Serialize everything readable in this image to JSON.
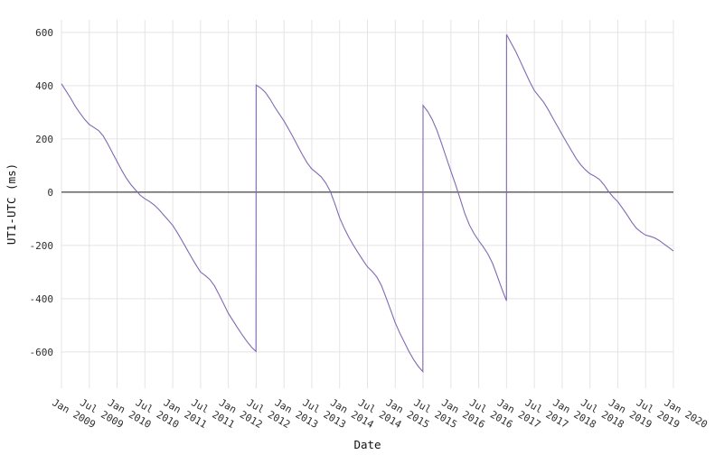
{
  "figure": {
    "background": "#ffffff"
  },
  "chart_data": {
    "type": "line",
    "title": "",
    "xlabel": "Date",
    "ylabel": "UT1-UTC (ms)",
    "legend": null,
    "grid": true,
    "grid_color": "#e4e4e4",
    "zero_line_color": "#1a1a1a",
    "line_color": "#8169b2",
    "tick_color": "#2e2e2e",
    "xlim": [
      2009.0,
      2020.0
    ],
    "ylim": [
      -736,
      647
    ],
    "x_tick_labels": [
      "Jan 2009",
      "Jul 2009",
      "Jan 2010",
      "Jul 2010",
      "Jan 2011",
      "Jul 2011",
      "Jan 2012",
      "Jul 2012",
      "Jan 2013",
      "Jul 2013",
      "Jan 2014",
      "Jul 2014",
      "Jan 2015",
      "Jul 2015",
      "Jan 2016",
      "Jul 2016",
      "Jan 2017",
      "Jul 2017",
      "Jan 2018",
      "Jul 2018",
      "Jan 2019",
      "Jul 2019",
      "Jan 2020"
    ],
    "x_tick_values": [
      2009.0,
      2009.5,
      2010.0,
      2010.5,
      2011.0,
      2011.5,
      2012.0,
      2012.5,
      2013.0,
      2013.5,
      2014.0,
      2014.5,
      2015.0,
      2015.5,
      2016.0,
      2016.5,
      2017.0,
      2017.5,
      2018.0,
      2018.5,
      2019.0,
      2019.5,
      2020.0
    ],
    "y_tick_values": [
      -600,
      -400,
      -200,
      0,
      200,
      400,
      600
    ],
    "series": [
      {
        "name": "UT1-UTC (ms)",
        "points": [
          [
            2009.0,
            407
          ],
          [
            2009.083,
            380
          ],
          [
            2009.167,
            352
          ],
          [
            2009.25,
            322
          ],
          [
            2009.333,
            297
          ],
          [
            2009.417,
            273
          ],
          [
            2009.5,
            254
          ],
          [
            2009.583,
            243
          ],
          [
            2009.667,
            231
          ],
          [
            2009.75,
            211
          ],
          [
            2009.833,
            181
          ],
          [
            2009.917,
            148
          ],
          [
            2010.0,
            115
          ],
          [
            2010.083,
            82
          ],
          [
            2010.167,
            52
          ],
          [
            2010.25,
            28
          ],
          [
            2010.333,
            8
          ],
          [
            2010.417,
            -12
          ],
          [
            2010.5,
            -25
          ],
          [
            2010.583,
            -35
          ],
          [
            2010.667,
            -48
          ],
          [
            2010.75,
            -65
          ],
          [
            2010.833,
            -85
          ],
          [
            2010.917,
            -105
          ],
          [
            2011.0,
            -125
          ],
          [
            2011.083,
            -152
          ],
          [
            2011.167,
            -182
          ],
          [
            2011.25,
            -213
          ],
          [
            2011.333,
            -243
          ],
          [
            2011.417,
            -273
          ],
          [
            2011.5,
            -300
          ],
          [
            2011.583,
            -313
          ],
          [
            2011.667,
            -328
          ],
          [
            2011.75,
            -352
          ],
          [
            2011.833,
            -385
          ],
          [
            2011.917,
            -420
          ],
          [
            2012.0,
            -455
          ],
          [
            2012.083,
            -482
          ],
          [
            2012.167,
            -510
          ],
          [
            2012.25,
            -536
          ],
          [
            2012.333,
            -560
          ],
          [
            2012.417,
            -582
          ],
          [
            2012.496,
            -598
          ],
          [
            2012.5,
            402
          ],
          [
            2012.583,
            391
          ],
          [
            2012.667,
            374
          ],
          [
            2012.75,
            349
          ],
          [
            2012.833,
            320
          ],
          [
            2012.917,
            293
          ],
          [
            2013.0,
            267
          ],
          [
            2013.083,
            237
          ],
          [
            2013.167,
            205
          ],
          [
            2013.25,
            172
          ],
          [
            2013.333,
            140
          ],
          [
            2013.417,
            110
          ],
          [
            2013.5,
            87
          ],
          [
            2013.583,
            73
          ],
          [
            2013.667,
            58
          ],
          [
            2013.75,
            35
          ],
          [
            2013.833,
            3
          ],
          [
            2013.917,
            -45
          ],
          [
            2014.0,
            -96
          ],
          [
            2014.083,
            -135
          ],
          [
            2014.167,
            -170
          ],
          [
            2014.25,
            -200
          ],
          [
            2014.333,
            -228
          ],
          [
            2014.417,
            -255
          ],
          [
            2014.5,
            -280
          ],
          [
            2014.583,
            -297
          ],
          [
            2014.667,
            -318
          ],
          [
            2014.75,
            -350
          ],
          [
            2014.833,
            -395
          ],
          [
            2014.917,
            -443
          ],
          [
            2015.0,
            -491
          ],
          [
            2015.083,
            -530
          ],
          [
            2015.167,
            -565
          ],
          [
            2015.25,
            -600
          ],
          [
            2015.333,
            -630
          ],
          [
            2015.417,
            -655
          ],
          [
            2015.496,
            -674
          ],
          [
            2015.5,
            326
          ],
          [
            2015.583,
            303
          ],
          [
            2015.667,
            272
          ],
          [
            2015.75,
            232
          ],
          [
            2015.833,
            183
          ],
          [
            2015.917,
            130
          ],
          [
            2016.0,
            79
          ],
          [
            2016.083,
            29
          ],
          [
            2016.167,
            -25
          ],
          [
            2016.25,
            -80
          ],
          [
            2016.333,
            -123
          ],
          [
            2016.417,
            -156
          ],
          [
            2016.5,
            -182
          ],
          [
            2016.583,
            -206
          ],
          [
            2016.667,
            -233
          ],
          [
            2016.75,
            -268
          ],
          [
            2016.833,
            -315
          ],
          [
            2016.917,
            -364
          ],
          [
            2016.999,
            -408
          ],
          [
            2017.0,
            592
          ],
          [
            2017.083,
            560
          ],
          [
            2017.167,
            528
          ],
          [
            2017.25,
            490
          ],
          [
            2017.333,
            452
          ],
          [
            2017.417,
            415
          ],
          [
            2017.5,
            382
          ],
          [
            2017.583,
            360
          ],
          [
            2017.667,
            338
          ],
          [
            2017.75,
            310
          ],
          [
            2017.833,
            278
          ],
          [
            2017.917,
            247
          ],
          [
            2018.0,
            216
          ],
          [
            2018.083,
            186
          ],
          [
            2018.167,
            156
          ],
          [
            2018.25,
            127
          ],
          [
            2018.333,
            103
          ],
          [
            2018.417,
            84
          ],
          [
            2018.5,
            69
          ],
          [
            2018.583,
            60
          ],
          [
            2018.667,
            48
          ],
          [
            2018.75,
            28
          ],
          [
            2018.833,
            3
          ],
          [
            2018.917,
            -18
          ],
          [
            2019.0,
            -36
          ],
          [
            2019.083,
            -60
          ],
          [
            2019.167,
            -85
          ],
          [
            2019.25,
            -112
          ],
          [
            2019.333,
            -135
          ],
          [
            2019.417,
            -150
          ],
          [
            2019.5,
            -161
          ],
          [
            2019.583,
            -166
          ],
          [
            2019.667,
            -172
          ],
          [
            2019.75,
            -182
          ],
          [
            2019.833,
            -195
          ],
          [
            2019.917,
            -208
          ],
          [
            2020.0,
            -221
          ]
        ]
      }
    ]
  }
}
